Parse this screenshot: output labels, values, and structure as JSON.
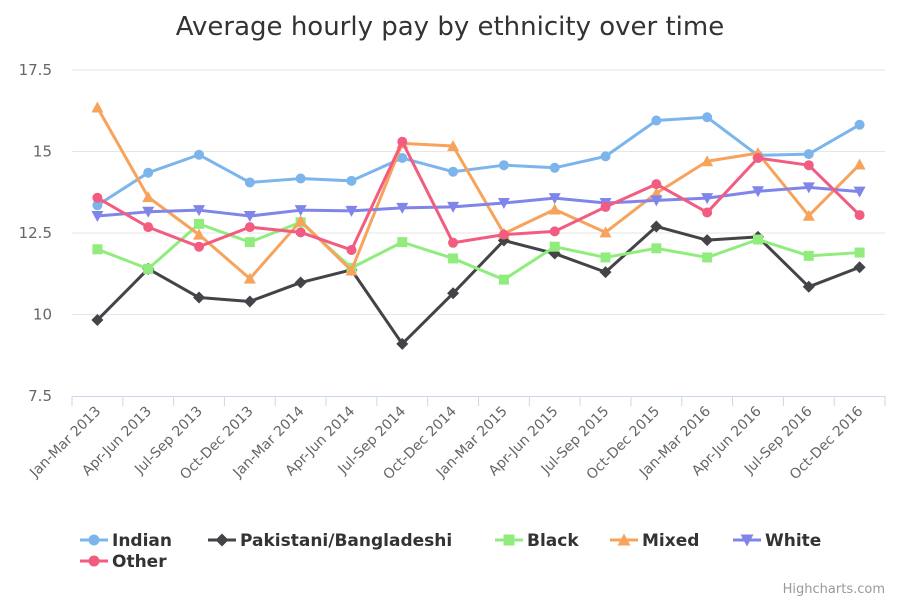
{
  "chart_data": {
    "type": "line",
    "title": "Average hourly pay by ethnicity over time",
    "xlabel": "",
    "ylabel": "",
    "categories": [
      "Jan-Mar 2013",
      "Apr-Jun 2013",
      "Jul-Sep 2013",
      "Oct-Dec 2013",
      "Jan-Mar 2014",
      "Apr-Jun 2014",
      "Jul-Sep 2014",
      "Oct-Dec 2014",
      "Jan-Mar 2015",
      "Apr-Jun 2015",
      "Jul-Sep 2015",
      "Oct-Dec 2015",
      "Jan-Mar 2016",
      "Apr-Jun 2016",
      "Jul-Sep 2016",
      "Oct-Dec 2016"
    ],
    "ylim": [
      7.5,
      17.5
    ],
    "yticks": [
      7.5,
      10,
      12.5,
      15,
      17.5
    ],
    "ytick_labels": [
      "7.5",
      "10",
      "12.5",
      "15",
      "17.5"
    ],
    "grid": true,
    "legend_position": "bottom-left",
    "series": [
      {
        "name": "Indian",
        "color": "#7cb5ec",
        "marker": "circle",
        "values": [
          13.35,
          14.35,
          14.9,
          14.05,
          14.17,
          14.1,
          14.8,
          14.38,
          14.58,
          14.5,
          14.85,
          15.95,
          16.05,
          14.88,
          14.92,
          15.82
        ]
      },
      {
        "name": "Pakistani/Bangladeshi",
        "color": "#434348",
        "marker": "diamond",
        "values": [
          9.83,
          11.4,
          10.52,
          10.4,
          10.98,
          11.37,
          9.1,
          10.65,
          12.27,
          11.87,
          11.3,
          12.7,
          12.28,
          12.38,
          10.85,
          11.45
        ]
      },
      {
        "name": "Black",
        "color": "#90ed7d",
        "marker": "square",
        "values": [
          12.0,
          11.4,
          12.78,
          12.22,
          12.83,
          11.43,
          12.22,
          11.72,
          11.07,
          12.08,
          11.75,
          12.03,
          11.75,
          12.3,
          11.8,
          11.9
        ]
      },
      {
        "name": "Mixed",
        "color": "#f7a35c",
        "marker": "triangle",
        "values": [
          16.35,
          13.6,
          12.45,
          11.1,
          12.87,
          11.35,
          15.25,
          15.17,
          12.48,
          13.22,
          12.52,
          13.72,
          14.7,
          14.95,
          13.03,
          14.6
        ]
      },
      {
        "name": "White",
        "color": "#8085e9",
        "marker": "triangle-down",
        "values": [
          13.02,
          13.15,
          13.2,
          13.02,
          13.2,
          13.18,
          13.27,
          13.3,
          13.42,
          13.57,
          13.42,
          13.5,
          13.57,
          13.78,
          13.9,
          13.77
        ]
      },
      {
        "name": "Other",
        "color": "#f15c80",
        "marker": "circle",
        "values": [
          13.58,
          12.68,
          12.08,
          12.68,
          12.52,
          11.98,
          15.3,
          12.2,
          12.45,
          12.55,
          13.3,
          14.0,
          13.13,
          14.8,
          14.58,
          13.05
        ]
      }
    ],
    "credits": "Highcharts.com"
  }
}
